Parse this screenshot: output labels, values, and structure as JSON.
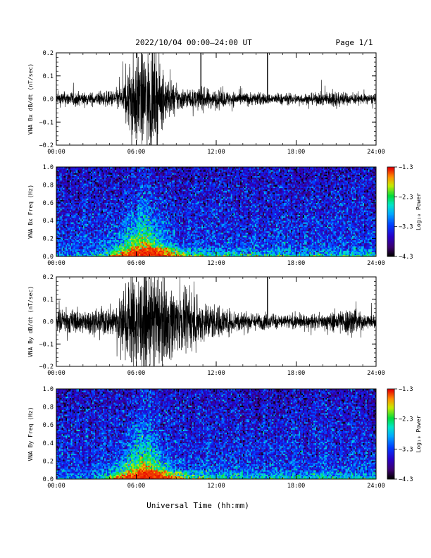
{
  "header": {
    "title": "2022/10/04   00:00–24:00 UT",
    "page": "Page 1/1"
  },
  "chart_data": [
    {
      "type": "line",
      "ylabel": "VNA Bx dB/dt (nT/sec)",
      "ylim": [
        -0.2,
        0.2
      ],
      "yticks": [
        "0.2",
        "0.1",
        "0.0",
        "−0.1",
        "−0.2"
      ],
      "xlim": [
        "00:00",
        "24:00"
      ],
      "xticks": [
        "00:00",
        "06:00",
        "12:00",
        "18:00",
        "24:00"
      ],
      "envelope_hours": [
        0,
        1,
        2,
        3,
        4,
        5,
        5.5,
        6,
        6.5,
        7,
        7.5,
        8,
        9,
        10,
        11,
        12,
        13,
        14,
        15,
        16,
        17,
        18,
        19,
        20,
        21,
        22,
        23,
        24
      ],
      "envelope_amplitude_nT_per_sec": [
        0.03,
        0.035,
        0.03,
        0.03,
        0.035,
        0.06,
        0.18,
        0.22,
        0.22,
        0.22,
        0.2,
        0.12,
        0.06,
        0.04,
        0.05,
        0.04,
        0.035,
        0.03,
        0.03,
        0.025,
        0.025,
        0.025,
        0.025,
        0.03,
        0.04,
        0.025,
        0.025,
        0.02
      ],
      "spikes": [
        {
          "hour": 10.85,
          "value": 0.2
        },
        {
          "hour": 15.85,
          "value": 0.2
        }
      ]
    },
    {
      "type": "heatmap",
      "ylabel": "VNA Bx Freq (Hz)",
      "ylim": [
        0.0,
        1.0
      ],
      "yticks": [
        "1.0",
        "0.8",
        "0.6",
        "0.4",
        "0.2",
        "0.0"
      ],
      "xlim": [
        "00:00",
        "24:00"
      ],
      "xticks": [
        "00:00",
        "06:00",
        "12:00",
        "18:00",
        "24:00"
      ],
      "colorbar": {
        "label": "Log₁₀ Power",
        "range": [
          -4.3,
          -1.3
        ],
        "ticks": [
          "−1.3",
          "−2.3",
          "−3.3",
          "−4.3"
        ]
      },
      "event_center_hour": 6.5,
      "event_peak_log_power": -1.4,
      "background_log_power": -3.3
    },
    {
      "type": "line",
      "ylabel": "VNA By dB/dt (nT/sec)",
      "ylim": [
        -0.2,
        0.2
      ],
      "yticks": [
        "0.2",
        "0.1",
        "0.0",
        "−0.1",
        "−0.2"
      ],
      "xlim": [
        "00:00",
        "24:00"
      ],
      "xticks": [
        "00:00",
        "06:00",
        "12:00",
        "18:00",
        "24:00"
      ],
      "envelope_hours": [
        0,
        1,
        2,
        3,
        4,
        5,
        5.5,
        6,
        6.5,
        7,
        7.5,
        8,
        9,
        10,
        11,
        12,
        13,
        14,
        15,
        16,
        17,
        18,
        19,
        20,
        21,
        22,
        23,
        24
      ],
      "envelope_amplitude_nT_per_sec": [
        0.05,
        0.06,
        0.05,
        0.06,
        0.07,
        0.12,
        0.22,
        0.22,
        0.22,
        0.22,
        0.22,
        0.2,
        0.15,
        0.12,
        0.1,
        0.08,
        0.06,
        0.05,
        0.04,
        0.035,
        0.035,
        0.035,
        0.03,
        0.035,
        0.05,
        0.07,
        0.04,
        0.03
      ],
      "spikes": [
        {
          "hour": 15.85,
          "value": 0.2
        }
      ]
    },
    {
      "type": "heatmap",
      "ylabel": "VNA By Freq (Hz)",
      "ylim": [
        0.0,
        1.0
      ],
      "yticks": [
        "1.0",
        "0.8",
        "0.6",
        "0.4",
        "0.2",
        "0.0"
      ],
      "xlim": [
        "00:00",
        "24:00"
      ],
      "xticks": [
        "00:00",
        "06:00",
        "12:00",
        "18:00",
        "24:00"
      ],
      "colorbar": {
        "label": "Log₁₀ Power",
        "range": [
          -4.3,
          -1.3
        ],
        "ticks": [
          "−1.3",
          "−2.3",
          "−3.3",
          "−4.3"
        ]
      },
      "event_center_hour": 6.5,
      "event_peak_log_power": -1.4,
      "background_log_power": -3.3
    }
  ],
  "xlabel": "Universal Time (hh:mm)"
}
